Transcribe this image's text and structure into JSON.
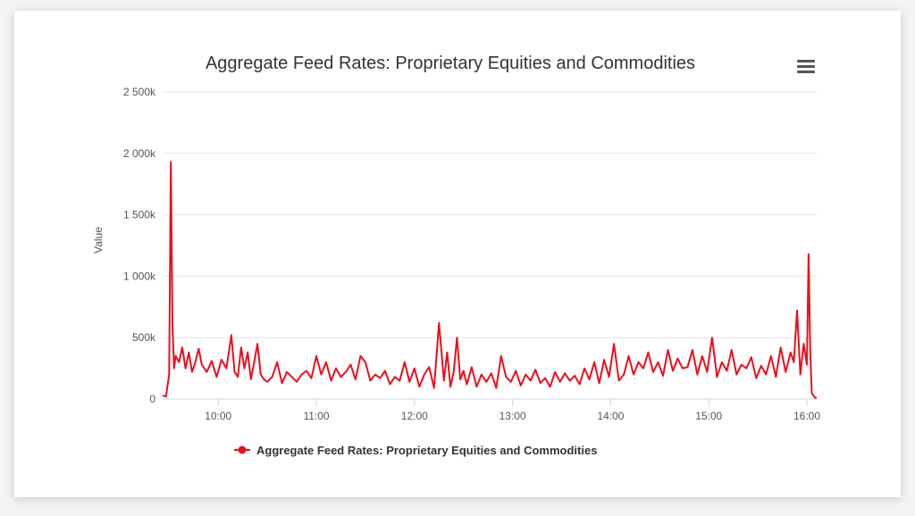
{
  "colors": {
    "series": "#e8101e",
    "grid": "#e6e6e6",
    "axis": "#ccd6eb"
  },
  "menu": {
    "icon": "hamburger-menu-icon"
  },
  "chart_data": {
    "type": "line",
    "title": "Aggregate Feed Rates: Proprietary Equities and Commodities",
    "xlabel": "",
    "ylabel": "Value",
    "x_range": [
      "09:26",
      "16:06"
    ],
    "ylim": [
      0,
      2500000
    ],
    "y_ticks": [
      0,
      500000,
      1000000,
      1500000,
      2000000,
      2500000
    ],
    "y_tick_labels": [
      "0",
      "500k",
      "1 000k",
      "1 500k",
      "2 000k",
      "2 500k"
    ],
    "x_ticks": [
      "10:00",
      "11:00",
      "12:00",
      "13:00",
      "14:00",
      "15:00",
      "16:00"
    ],
    "grid": true,
    "legend": "bottom-center",
    "series": [
      {
        "name": "Aggregate Feed Rates: Proprietary Equities and Commodities",
        "x": [
          "09:26",
          "09:28",
          "09:30",
          "09:31",
          "09:32",
          "09:33",
          "09:34",
          "09:36",
          "09:38",
          "09:40",
          "09:42",
          "09:44",
          "09:46",
          "09:48",
          "09:50",
          "09:53",
          "09:56",
          "09:59",
          "10:02",
          "10:05",
          "10:08",
          "10:10",
          "10:12",
          "10:14",
          "10:16",
          "10:18",
          "10:20",
          "10:22",
          "10:24",
          "10:26",
          "10:28",
          "10:30",
          "10:33",
          "10:36",
          "10:39",
          "10:42",
          "10:45",
          "10:48",
          "10:51",
          "10:54",
          "10:57",
          "11:00",
          "11:03",
          "11:06",
          "11:09",
          "11:12",
          "11:15",
          "11:18",
          "11:21",
          "11:24",
          "11:27",
          "11:30",
          "11:33",
          "11:36",
          "11:39",
          "11:42",
          "11:45",
          "11:48",
          "11:51",
          "11:54",
          "11:57",
          "12:00",
          "12:03",
          "12:06",
          "12:09",
          "12:12",
          "12:15",
          "12:18",
          "12:20",
          "12:22",
          "12:24",
          "12:26",
          "12:28",
          "12:30",
          "12:32",
          "12:35",
          "12:38",
          "12:41",
          "12:44",
          "12:47",
          "12:50",
          "12:53",
          "12:56",
          "12:59",
          "13:02",
          "13:05",
          "13:08",
          "13:11",
          "13:14",
          "13:17",
          "13:20",
          "13:23",
          "13:26",
          "13:29",
          "13:32",
          "13:35",
          "13:38",
          "13:41",
          "13:44",
          "13:47",
          "13:50",
          "13:53",
          "13:56",
          "13:59",
          "14:02",
          "14:05",
          "14:08",
          "14:11",
          "14:14",
          "14:17",
          "14:20",
          "14:23",
          "14:26",
          "14:29",
          "14:32",
          "14:35",
          "14:38",
          "14:41",
          "14:44",
          "14:47",
          "14:50",
          "14:53",
          "14:56",
          "14:59",
          "15:02",
          "15:05",
          "15:08",
          "15:11",
          "15:14",
          "15:17",
          "15:20",
          "15:23",
          "15:26",
          "15:29",
          "15:32",
          "15:35",
          "15:38",
          "15:41",
          "15:44",
          "15:47",
          "15:50",
          "15:52",
          "15:54",
          "15:56",
          "15:58",
          "16:00",
          "16:01",
          "16:02",
          "16:03",
          "16:04",
          "16:05",
          "16:06"
        ],
        "values": [
          30000,
          20000,
          200000,
          1930000,
          600000,
          250000,
          350000,
          300000,
          420000,
          250000,
          380000,
          220000,
          300000,
          410000,
          280000,
          220000,
          310000,
          180000,
          320000,
          250000,
          520000,
          220000,
          180000,
          420000,
          250000,
          380000,
          160000,
          300000,
          450000,
          200000,
          160000,
          140000,
          180000,
          300000,
          130000,
          220000,
          180000,
          140000,
          200000,
          230000,
          170000,
          350000,
          200000,
          300000,
          150000,
          250000,
          180000,
          220000,
          280000,
          160000,
          350000,
          300000,
          150000,
          200000,
          170000,
          230000,
          120000,
          180000,
          150000,
          300000,
          140000,
          250000,
          100000,
          200000,
          260000,
          90000,
          620000,
          150000,
          380000,
          100000,
          220000,
          500000,
          160000,
          230000,
          120000,
          260000,
          100000,
          200000,
          140000,
          210000,
          90000,
          350000,
          180000,
          140000,
          230000,
          110000,
          200000,
          150000,
          240000,
          130000,
          170000,
          100000,
          220000,
          140000,
          210000,
          150000,
          190000,
          120000,
          250000,
          160000,
          300000,
          130000,
          320000,
          180000,
          450000,
          150000,
          200000,
          350000,
          200000,
          300000,
          250000,
          380000,
          220000,
          300000,
          190000,
          400000,
          230000,
          330000,
          250000,
          260000,
          400000,
          200000,
          350000,
          220000,
          500000,
          180000,
          300000,
          230000,
          400000,
          200000,
          280000,
          250000,
          340000,
          170000,
          270000,
          200000,
          350000,
          180000,
          420000,
          220000,
          380000,
          300000,
          720000,
          200000,
          450000,
          280000,
          1180000,
          400000,
          50000,
          30000,
          10000,
          10000
        ]
      }
    ]
  }
}
